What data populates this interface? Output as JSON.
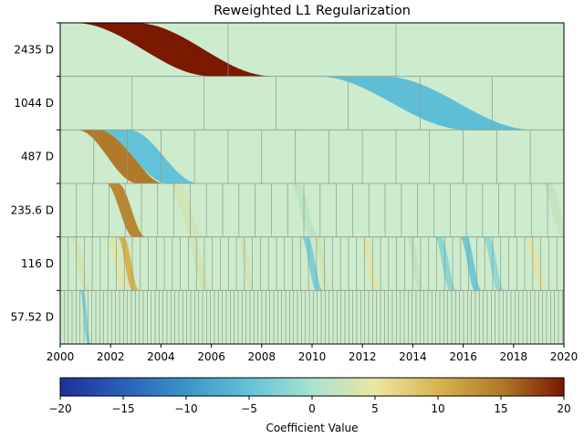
{
  "chart_data": {
    "type": "heatmap",
    "title": "Reweighted L1 Regularization",
    "xlabel": "",
    "ylabel": "",
    "xlim": [
      2000,
      2020
    ],
    "x_ticks": [
      2000,
      2002,
      2004,
      2006,
      2008,
      2010,
      2012,
      2014,
      2016,
      2018,
      2020
    ],
    "x_tick_labels": [
      "2000",
      "2002",
      "2004",
      "2006",
      "2008",
      "2010",
      "2012",
      "2014",
      "2016",
      "2018",
      "2020"
    ],
    "background_color": "#cdeccd",
    "bands": [
      {
        "label": "2435 D",
        "period_years": 6.667,
        "features": [
          {
            "center": 2004.5,
            "width": 5.5,
            "value": 20
          }
        ]
      },
      {
        "label": "1044 D",
        "period_years": 2.858,
        "features": [
          {
            "center": 2014.5,
            "width": 6.0,
            "value": -5.5
          }
        ]
      },
      {
        "label": "487 D",
        "period_years": 1.333,
        "features": [
          {
            "center": 2002.4,
            "width": 2.4,
            "value": 15
          },
          {
            "center": 2003.5,
            "width": 2.8,
            "value": -5
          }
        ]
      },
      {
        "label": "235.6 D",
        "period_years": 0.645,
        "features": [
          {
            "center": 2002.6,
            "width": 1.1,
            "value": 14
          },
          {
            "center": 2005.0,
            "width": 1.0,
            "value": 3
          },
          {
            "center": 2009.7,
            "width": 0.8,
            "value": 1.5
          },
          {
            "center": 2019.7,
            "width": 0.8,
            "value": 2
          }
        ]
      },
      {
        "label": "116 D",
        "period_years": 0.318,
        "features": [
          {
            "center": 2000.8,
            "width": 0.6,
            "value": 3
          },
          {
            "center": 2002.3,
            "width": 0.7,
            "value": 4
          },
          {
            "center": 2002.7,
            "width": 0.6,
            "value": 10
          },
          {
            "center": 2005.5,
            "width": 0.7,
            "value": 3
          },
          {
            "center": 2007.4,
            "width": 0.5,
            "value": 3
          },
          {
            "center": 2010.0,
            "width": 0.6,
            "value": -3
          },
          {
            "center": 2010.4,
            "width": 0.5,
            "value": 3
          },
          {
            "center": 2012.3,
            "width": 0.6,
            "value": 4
          },
          {
            "center": 2014.1,
            "width": 0.5,
            "value": 2
          },
          {
            "center": 2015.3,
            "width": 0.6,
            "value": -2
          },
          {
            "center": 2016.3,
            "width": 0.6,
            "value": -4
          },
          {
            "center": 2017.2,
            "width": 0.6,
            "value": -1.5
          },
          {
            "center": 2018.9,
            "width": 0.7,
            "value": 4
          }
        ]
      },
      {
        "label": "57.52 D",
        "period_years": 0.157,
        "features": [
          {
            "center": 2001.0,
            "width": 0.3,
            "value": -3
          }
        ]
      }
    ],
    "colorbar": {
      "label": "Coefficient Value",
      "vmin": -20,
      "vmax": 20,
      "ticks": [
        -20,
        -15,
        -10,
        -5,
        0,
        5,
        10,
        15,
        20
      ],
      "tick_labels": [
        "−20",
        "−15",
        "−10",
        "−5",
        "0",
        "5",
        "10",
        "15",
        "20"
      ],
      "colors": [
        "#1f2f98",
        "#2a60b8",
        "#3b95c8",
        "#62c3d8",
        "#a8e2d2",
        "#ebe7a2",
        "#d8b44f",
        "#b17a2a",
        "#7a1800"
      ]
    }
  }
}
